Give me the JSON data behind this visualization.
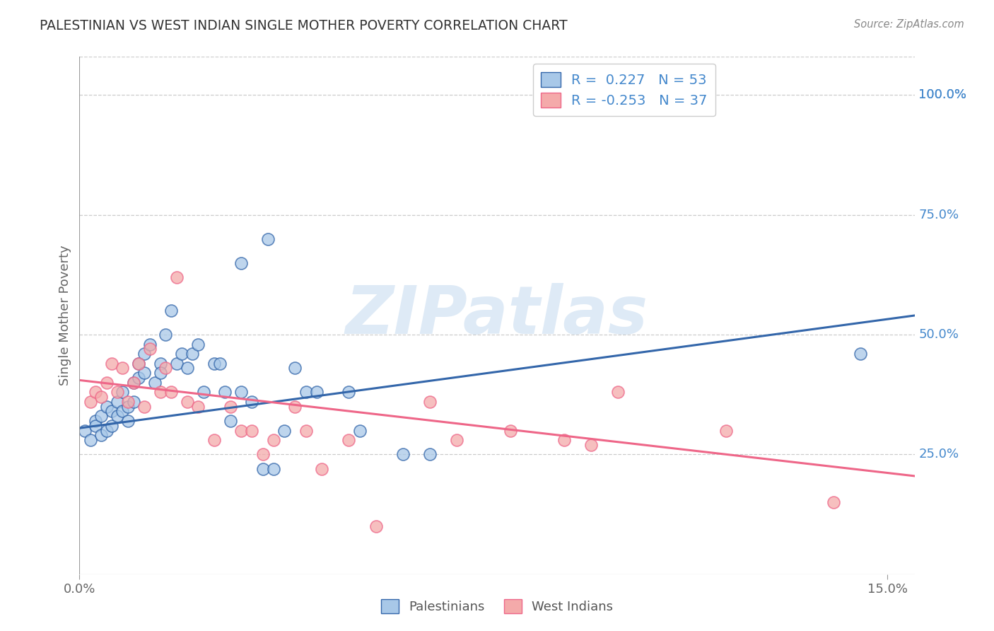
{
  "title": "PALESTINIAN VS WEST INDIAN SINGLE MOTHER POVERTY CORRELATION CHART",
  "source": "Source: ZipAtlas.com",
  "ylabel": "Single Mother Poverty",
  "ytick_vals": [
    0.25,
    0.5,
    0.75,
    1.0
  ],
  "ytick_labels": [
    "25.0%",
    "50.0%",
    "75.0%",
    "100.0%"
  ],
  "xtick_vals": [
    0.0,
    0.15
  ],
  "xtick_labels": [
    "0.0%",
    "15.0%"
  ],
  "xlim": [
    0.0,
    0.155
  ],
  "ylim": [
    0.0,
    1.08
  ],
  "legend_label1": "Palestinians",
  "legend_label2": "West Indians",
  "blue_color": "#A8C8E8",
  "pink_color": "#F4AAAA",
  "line_blue": "#3366AA",
  "line_pink": "#EE6688",
  "bg_color": "#FFFFFF",
  "grid_color": "#CCCCCC",
  "title_color": "#333333",
  "right_tick_color": "#4488CC",
  "watermark_color": "#C8DCF0",
  "pal_x": [
    0.001,
    0.002,
    0.003,
    0.003,
    0.004,
    0.004,
    0.005,
    0.005,
    0.006,
    0.006,
    0.007,
    0.007,
    0.008,
    0.008,
    0.009,
    0.009,
    0.01,
    0.01,
    0.011,
    0.011,
    0.012,
    0.012,
    0.013,
    0.014,
    0.015,
    0.015,
    0.016,
    0.017,
    0.018,
    0.019,
    0.02,
    0.021,
    0.022,
    0.023,
    0.025,
    0.026,
    0.027,
    0.028,
    0.03,
    0.032,
    0.034,
    0.036,
    0.038,
    0.04,
    0.042,
    0.044,
    0.05,
    0.052,
    0.06,
    0.065,
    0.03,
    0.035,
    0.145
  ],
  "pal_y": [
    0.3,
    0.28,
    0.32,
    0.31,
    0.33,
    0.29,
    0.35,
    0.3,
    0.34,
    0.31,
    0.36,
    0.33,
    0.38,
    0.34,
    0.35,
    0.32,
    0.4,
    0.36,
    0.44,
    0.41,
    0.46,
    0.42,
    0.48,
    0.4,
    0.44,
    0.42,
    0.5,
    0.55,
    0.44,
    0.46,
    0.43,
    0.46,
    0.48,
    0.38,
    0.44,
    0.44,
    0.38,
    0.32,
    0.38,
    0.36,
    0.22,
    0.22,
    0.3,
    0.43,
    0.38,
    0.38,
    0.38,
    0.3,
    0.25,
    0.25,
    0.65,
    0.7,
    0.46
  ],
  "wi_x": [
    0.002,
    0.003,
    0.004,
    0.005,
    0.006,
    0.007,
    0.008,
    0.009,
    0.01,
    0.011,
    0.012,
    0.013,
    0.015,
    0.016,
    0.017,
    0.018,
    0.02,
    0.022,
    0.025,
    0.028,
    0.03,
    0.032,
    0.034,
    0.036,
    0.04,
    0.042,
    0.045,
    0.05,
    0.055,
    0.065,
    0.07,
    0.08,
    0.09,
    0.095,
    0.1,
    0.12,
    0.14
  ],
  "wi_y": [
    0.36,
    0.38,
    0.37,
    0.4,
    0.44,
    0.38,
    0.43,
    0.36,
    0.4,
    0.44,
    0.35,
    0.47,
    0.38,
    0.43,
    0.38,
    0.62,
    0.36,
    0.35,
    0.28,
    0.35,
    0.3,
    0.3,
    0.25,
    0.28,
    0.35,
    0.3,
    0.22,
    0.28,
    0.1,
    0.36,
    0.28,
    0.3,
    0.28,
    0.27,
    0.38,
    0.3,
    0.15
  ],
  "pal_line_x0": 0.0,
  "pal_line_y0": 0.305,
  "pal_line_x1": 0.155,
  "pal_line_y1": 0.54,
  "wi_line_x0": 0.0,
  "wi_line_y0": 0.405,
  "wi_line_x1": 0.155,
  "wi_line_y1": 0.205
}
